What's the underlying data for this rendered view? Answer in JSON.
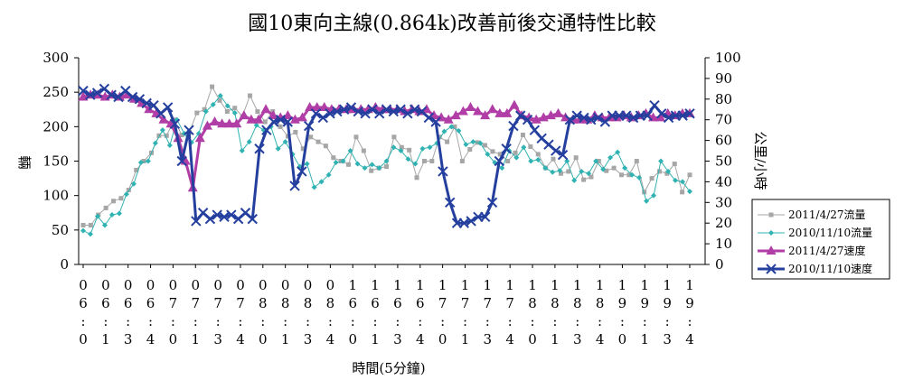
{
  "chart_data": {
    "type": "line",
    "title": "國10東向主線(0.864k)改善前後交通特性比較",
    "xlabel": "時間(5分鐘)",
    "ylabel_left": "輛",
    "ylabel_right": "公里/小時",
    "y_left_range": [
      0,
      300
    ],
    "y_left_ticks": [
      "0",
      "50",
      "100",
      "150",
      "200",
      "250",
      "300"
    ],
    "y_right_range": [
      0,
      100
    ],
    "y_right_ticks": [
      "0",
      "10",
      "20",
      "30",
      "40",
      "50",
      "60",
      "70",
      "80",
      "90",
      "100"
    ],
    "x_tick_labels": [
      [
        "0",
        "6",
        ":",
        "0"
      ],
      [
        "0",
        "6",
        ":",
        "1"
      ],
      [
        "0",
        "6",
        ":",
        "3"
      ],
      [
        "0",
        "6",
        ":",
        "4"
      ],
      [
        "0",
        "7",
        ":",
        "0"
      ],
      [
        "0",
        "7",
        ":",
        "1"
      ],
      [
        "0",
        "7",
        ":",
        "3"
      ],
      [
        "0",
        "7",
        ":",
        "4"
      ],
      [
        "0",
        "8",
        ":",
        "0"
      ],
      [
        "0",
        "8",
        ":",
        "1"
      ],
      [
        "0",
        "8",
        ":",
        "3"
      ],
      [
        "0",
        "8",
        ":",
        "4"
      ],
      [
        "1",
        "6",
        ":",
        "0"
      ],
      [
        "1",
        "6",
        ":",
        "1"
      ],
      [
        "1",
        "6",
        ":",
        "3"
      ],
      [
        "1",
        "6",
        ":",
        "4"
      ],
      [
        "1",
        "7",
        ":",
        "0"
      ],
      [
        "1",
        "7",
        ":",
        "1"
      ],
      [
        "1",
        "7",
        ":",
        "3"
      ],
      [
        "1",
        "7",
        ":",
        "4"
      ],
      [
        "1",
        "8",
        ":",
        "0"
      ],
      [
        "1",
        "8",
        ":",
        "1"
      ],
      [
        "1",
        "8",
        ":",
        "3"
      ],
      [
        "1",
        "8",
        ":",
        "4"
      ],
      [
        "1",
        "9",
        ":",
        "0"
      ],
      [
        "1",
        "9",
        ":",
        "1"
      ],
      [
        "1",
        "9",
        ":",
        "3"
      ],
      [
        "1",
        "9",
        ":",
        "4"
      ]
    ],
    "legend_position": "right",
    "grid": false,
    "series": [
      {
        "name": "2011/4/27流量",
        "axis": "left",
        "color": "#a6a6a6",
        "marker": "square",
        "values": [
          57,
          57,
          72,
          82,
          92,
          96,
          108,
          137,
          150,
          162,
          187,
          187,
          210,
          188,
          192,
          220,
          225,
          258,
          238,
          222,
          227,
          215,
          245,
          222,
          207,
          222,
          200,
          186,
          192,
          168,
          185,
          178,
          172,
          155,
          150,
          145,
          185,
          165,
          136,
          140,
          142,
          185,
          170,
          166,
          126,
          150,
          150,
          185,
          178,
          200,
          150,
          167,
          177,
          173,
          164,
          160,
          150,
          162,
          188,
          171,
          160,
          140,
          153,
          132,
          135,
          155,
          123,
          127,
          150,
          136,
          140,
          130,
          130,
          150,
          105,
          125,
          135,
          132,
          146,
          105,
          130
        ]
      },
      {
        "name": "2010/11/10流量",
        "axis": "left",
        "color": "#31b2b2",
        "marker": "diamond",
        "values": [
          49,
          44,
          70,
          57,
          72,
          74,
          102,
          117,
          148,
          150,
          176,
          195,
          173,
          210,
          190,
          177,
          190,
          222,
          232,
          245,
          230,
          220,
          165,
          178,
          202,
          195,
          200,
          168,
          178,
          160,
          142,
          146,
          112,
          120,
          130,
          148,
          150,
          165,
          146,
          140,
          145,
          140,
          150,
          170,
          165,
          153,
          146,
          168,
          170,
          176,
          193,
          200,
          194,
          174,
          178,
          176,
          160,
          148,
          140,
          165,
          155,
          170,
          150,
          152,
          140,
          134,
          136,
          150,
          122,
          135,
          132,
          150,
          138,
          155,
          163,
          140,
          130,
          126,
          92,
          100,
          150,
          135,
          122,
          120,
          106
        ]
      },
      {
        "name": "2011/4/27速度",
        "axis": "right",
        "color": "#b03ea6",
        "marker": "triangle",
        "values": [
          81,
          82,
          82,
          81,
          82,
          81,
          82,
          80,
          78,
          75,
          73,
          70,
          68,
          61,
          50,
          37,
          61,
          67,
          69,
          68,
          68,
          68,
          72,
          70,
          70,
          75,
          72,
          71,
          72,
          70,
          71,
          76,
          76,
          76,
          75,
          75,
          75,
          75,
          75,
          75,
          76,
          75,
          75,
          75,
          74,
          75,
          74,
          75,
          72,
          71,
          70,
          72,
          74,
          76,
          74,
          72,
          75,
          73,
          73,
          77,
          72,
          71,
          70,
          71,
          72,
          73,
          71,
          70,
          70,
          70,
          72,
          71,
          71,
          71,
          72,
          71,
          72,
          73,
          71,
          71,
          73,
          72,
          73,
          73
        ]
      },
      {
        "name": "2010/11/10速度",
        "axis": "right",
        "color": "#243f9e",
        "marker": "x",
        "values": [
          84,
          82,
          83,
          85,
          82,
          81,
          84,
          81,
          80,
          78,
          77,
          73,
          76,
          68,
          50,
          65,
          21,
          25,
          22,
          24,
          23,
          24,
          22,
          25,
          22,
          56,
          65,
          69,
          70,
          69,
          38,
          45,
          67,
          73,
          71,
          73,
          74,
          75,
          76,
          74,
          73,
          75,
          73,
          75,
          74,
          75,
          73,
          75,
          74,
          71,
          69,
          45,
          30,
          20,
          20,
          21,
          23,
          23,
          30,
          50,
          56,
          67,
          72,
          70,
          65,
          61,
          58,
          55,
          53,
          70,
          72,
          71,
          70,
          71,
          69,
          72,
          72,
          72,
          71,
          72,
          72,
          77,
          73,
          71,
          72,
          72,
          73
        ]
      }
    ]
  }
}
